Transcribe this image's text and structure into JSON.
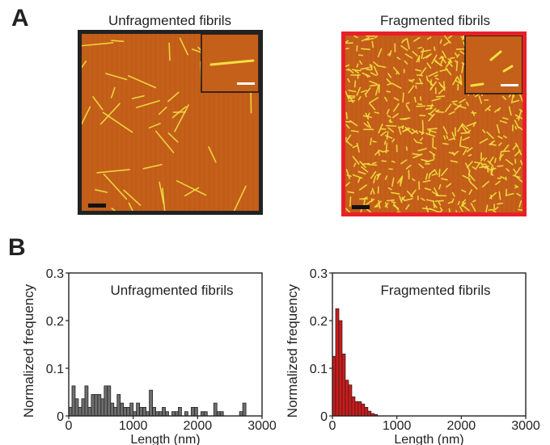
{
  "panels": {
    "a_label": "A",
    "b_label": "B"
  },
  "images": [
    {
      "title": "Unfragmented fibrils",
      "border_color": "#222222"
    },
    {
      "title": "Fragmented fibrils",
      "border_color": "#e8202a"
    }
  ],
  "colors": {
    "afm_background": "#c4601a",
    "fibril": "#f2e040",
    "unfragmented_bar": "#6e6e6e",
    "fragmented_bar": "#d11a1a"
  },
  "chart_data": [
    {
      "type": "bar",
      "title": "Unfragmented fibrils",
      "xlabel": "Length (nm)",
      "ylabel": "Normalized frequency",
      "xlim": [
        0,
        3000
      ],
      "ylim": [
        0,
        0.3
      ],
      "xticks": [
        "0",
        "1000",
        "2000",
        "3000"
      ],
      "yticks": [
        "0",
        "0.1",
        "0.2",
        "0.3"
      ],
      "bin_width": 50,
      "bin_start": 0,
      "values": [
        0.018,
        0.063,
        0.036,
        0.018,
        0.036,
        0.063,
        0.018,
        0.045,
        0.045,
        0.045,
        0.036,
        0.063,
        0.063,
        0.027,
        0.018,
        0.045,
        0.027,
        0.018,
        0.018,
        0.027,
        0.009,
        0.027,
        0.018,
        0.018,
        0.009,
        0.054,
        0.018,
        0.009,
        0.009,
        0.018,
        0.009,
        0.0,
        0.009,
        0.009,
        0.018,
        0.0,
        0.009,
        0.0,
        0.018,
        0.018,
        0.0,
        0.009,
        0.009,
        0.0,
        0.0,
        0.027,
        0.009,
        0.009,
        0.0,
        0.0,
        0.0,
        0.0,
        0.0,
        0.009,
        0.027,
        0.0,
        0.0,
        0.0,
        0.0,
        0.0
      ]
    },
    {
      "type": "bar",
      "title": "Fragmented fibrils",
      "xlabel": "Length (nm)",
      "ylabel": "Normalized frequency",
      "xlim": [
        0,
        3000
      ],
      "ylim": [
        0,
        0.3
      ],
      "xticks": [
        "0",
        "1000",
        "2000",
        "3000"
      ],
      "yticks": [
        "0",
        "0.1",
        "0.2",
        "0.3"
      ],
      "bin_width": 50,
      "bin_start": 0,
      "values": [
        0.125,
        0.225,
        0.2,
        0.13,
        0.075,
        0.065,
        0.04,
        0.03,
        0.03,
        0.025,
        0.018,
        0.01,
        0.005,
        0.003,
        0.0,
        0.0
      ]
    }
  ]
}
